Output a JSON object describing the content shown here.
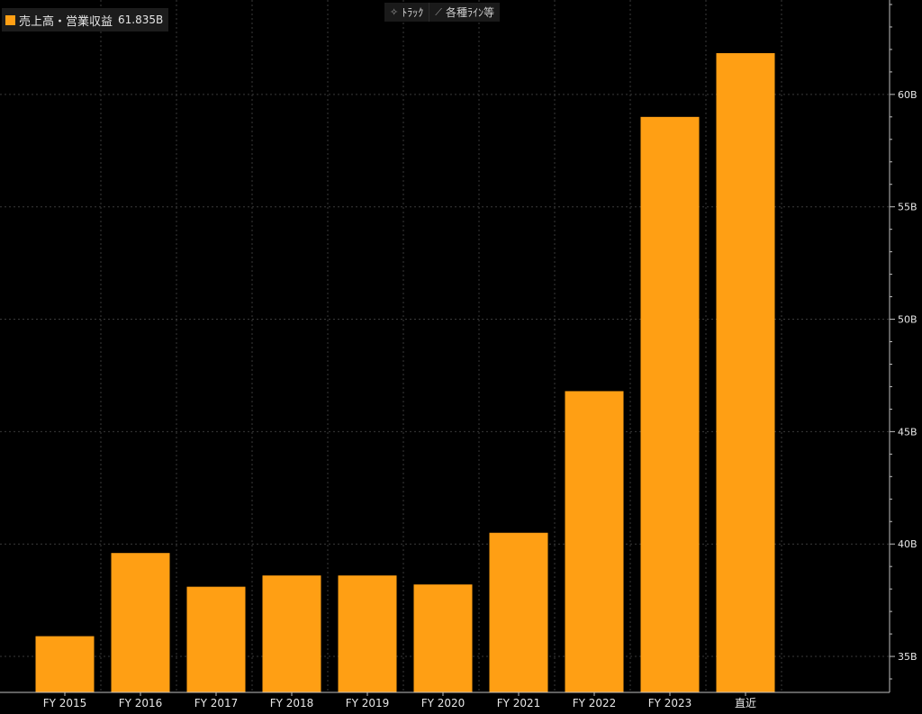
{
  "legend": {
    "name": "売上高・営業収益",
    "value": "61.835B",
    "color": "#ff9f14"
  },
  "toolbar": {
    "track_icon": "crosshair-icon",
    "track_label": "ﾄﾗｯｸ",
    "lines_icon": "line-draw-icon",
    "lines_label": "各種ﾗｲﾝ等"
  },
  "chart_data": {
    "type": "bar",
    "categories": [
      "FY 2015",
      "FY 2016",
      "FY 2017",
      "FY 2018",
      "FY 2019",
      "FY 2020",
      "FY 2021",
      "FY 2022",
      "FY 2023",
      "直近"
    ],
    "series": [
      {
        "name": "売上高・営業収益",
        "values": [
          35.9,
          39.6,
          38.1,
          38.6,
          38.6,
          38.2,
          40.5,
          46.8,
          59.0,
          61.835
        ],
        "color": "#ff9f14"
      }
    ],
    "ylim": [
      33.4,
      64.2
    ],
    "yticks": [
      35,
      40,
      45,
      50,
      55,
      60
    ],
    "ytick_labels": [
      "35B",
      "40B",
      "45B",
      "50B",
      "55B",
      "60B"
    ],
    "y_axis_side": "right",
    "grid": true,
    "legend_position": "top-left",
    "background": "#000000",
    "grid_color": "#3a3a3a",
    "text_color": "#e6e6e6"
  }
}
